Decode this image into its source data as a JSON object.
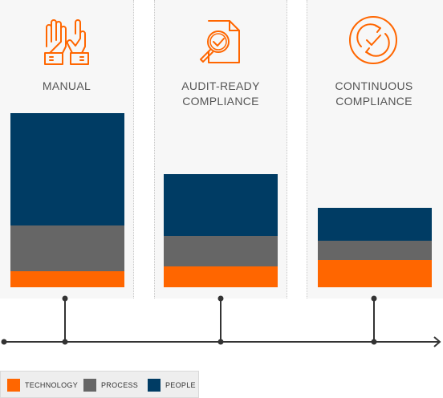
{
  "columns": [
    {
      "title": "MANUAL",
      "icon": "raised-hands-icon"
    },
    {
      "title": "AUDIT-READY\nCOMPLIANCE",
      "icon": "document-magnifier-check-icon"
    },
    {
      "title": "CONTINUOUS\nCOMPLIANCE",
      "icon": "circular-arrows-check-icon"
    }
  ],
  "colors": {
    "accent": "#ff6600",
    "technology": "#ff6600",
    "process": "#666666",
    "people": "#003c64",
    "timeline": "#333333"
  },
  "chart_data": {
    "type": "bar",
    "stacked": true,
    "categories": [
      "MANUAL",
      "AUDIT-READY COMPLIANCE",
      "CONTINUOUS COMPLIANCE"
    ],
    "series": [
      {
        "name": "TECHNOLOGY",
        "values": [
          20,
          26,
          34
        ]
      },
      {
        "name": "PROCESS",
        "values": [
          57,
          38,
          24
        ]
      },
      {
        "name": "PEOPLE",
        "values": [
          140,
          77,
          41
        ]
      }
    ],
    "ylim": [
      0,
      217
    ],
    "legend": "bottom-left",
    "grid": false
  },
  "legend": {
    "items": [
      {
        "label": "TECHNOLOGY",
        "color": "#ff6600"
      },
      {
        "label": "PROCESS",
        "color": "#666666"
      },
      {
        "label": "PEOPLE",
        "color": "#003c64"
      }
    ]
  }
}
